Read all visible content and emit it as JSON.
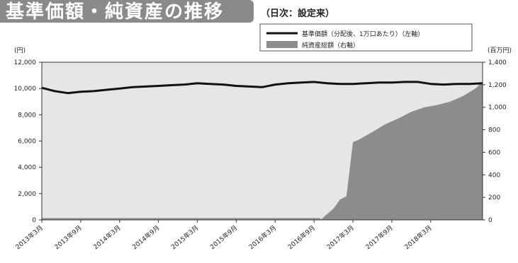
{
  "title": "基準価額・純資産の推移",
  "subtitle": "（日次：設定来）",
  "chart_data": {
    "type": "line+area",
    "left_axis_unit": "(円)",
    "right_axis_unit": "(百万円)",
    "left_axis_ticks": [
      "12,000",
      "10,000",
      "8,000",
      "6,000",
      "4,000",
      "2,000",
      "0"
    ],
    "right_axis_ticks": [
      "1,400",
      "1,200",
      "1,000",
      "800",
      "600",
      "400",
      "200",
      "0"
    ],
    "ylim_left": [
      0,
      12000
    ],
    "ylim_right": [
      0,
      1400
    ],
    "x_tick_labels": [
      "2013年3月",
      "2013年9月",
      "2014年3月",
      "2014年9月",
      "2015年3月",
      "2015年9月",
      "2016年3月",
      "2016年9月",
      "2017年3月",
      "2017年9月",
      "2018年3月"
    ],
    "x_range_months": [
      "2013-03",
      "2018-11"
    ],
    "legend": [
      "基準価額（分配後、1万口あたり）（左軸）",
      "純資産総額（右軸）"
    ],
    "series": [
      {
        "name": "基準価額（分配後、1万口あたり）（左軸）",
        "axis": "left",
        "color": "#111111",
        "x": [
          "2013-03",
          "2013-05",
          "2013-07",
          "2013-09",
          "2013-11",
          "2014-01",
          "2014-03",
          "2014-05",
          "2014-07",
          "2014-09",
          "2014-11",
          "2015-01",
          "2015-03",
          "2015-05",
          "2015-07",
          "2015-09",
          "2015-11",
          "2016-01",
          "2016-03",
          "2016-05",
          "2016-07",
          "2016-09",
          "2016-11",
          "2017-01",
          "2017-03",
          "2017-05",
          "2017-07",
          "2017-09",
          "2017-11",
          "2018-01",
          "2018-03",
          "2018-05",
          "2018-07",
          "2018-09",
          "2018-11"
        ],
        "values": [
          10050,
          9800,
          9650,
          9750,
          9800,
          9900,
          10000,
          10100,
          10150,
          10200,
          10250,
          10300,
          10400,
          10350,
          10300,
          10200,
          10150,
          10100,
          10300,
          10400,
          10450,
          10500,
          10400,
          10350,
          10350,
          10400,
          10450,
          10450,
          10500,
          10500,
          10350,
          10300,
          10350,
          10350,
          10400
        ]
      },
      {
        "name": "純資産総額（右軸）",
        "axis": "right",
        "color": "#8c8c8c",
        "x": [
          "2013-03",
          "2016-10",
          "2016-12",
          "2017-01",
          "2017-02",
          "2017-03",
          "2017-04",
          "2017-06",
          "2017-08",
          "2017-10",
          "2017-12",
          "2018-02",
          "2018-04",
          "2018-06",
          "2018-08",
          "2018-10",
          "2018-11"
        ],
        "values": [
          0,
          0,
          100,
          180,
          210,
          690,
          715,
          780,
          850,
          900,
          960,
          1000,
          1020,
          1050,
          1100,
          1170,
          1230
        ]
      }
    ],
    "background": "#e6e6e6",
    "grid": false,
    "legend_position": "top-right"
  }
}
